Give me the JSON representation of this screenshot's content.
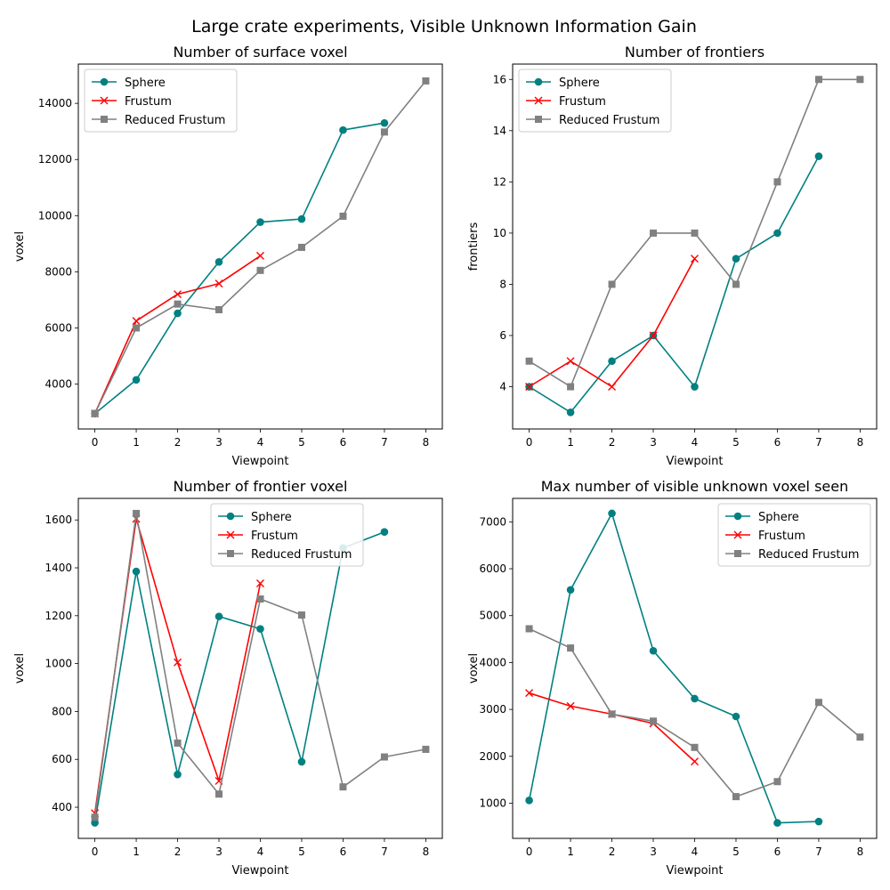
{
  "figure": {
    "suptitle": "Large crate experiments, Visible Unknown Information Gain"
  },
  "series_styles": [
    {
      "name": "Sphere",
      "color": "#008080",
      "marker": "circle"
    },
    {
      "name": "Frustum",
      "color": "#ff0000",
      "marker": "x"
    },
    {
      "name": "Reduced Frustum",
      "color": "#808080",
      "marker": "square"
    }
  ],
  "chart_data": [
    {
      "type": "line",
      "title": "Number of surface voxel",
      "xlabel": "Viewpoint",
      "ylabel": "voxel",
      "xlim": [
        -0.4,
        8.4
      ],
      "ylim": [
        2400,
        15400
      ],
      "xticks": [
        0,
        1,
        2,
        3,
        4,
        5,
        6,
        7,
        8
      ],
      "yticks": [
        4000,
        6000,
        8000,
        10000,
        12000,
        14000
      ],
      "legend": "top-left",
      "grid": false,
      "series": [
        {
          "name": "Sphere",
          "x": [
            0,
            1,
            2,
            3,
            4,
            5,
            6,
            7
          ],
          "values": [
            2950,
            4150,
            6520,
            8350,
            9770,
            9880,
            13050,
            13300
          ]
        },
        {
          "name": "Frustum",
          "x": [
            0,
            1,
            2,
            3,
            4
          ],
          "values": [
            2950,
            6250,
            7200,
            7580,
            8570
          ]
        },
        {
          "name": "Reduced Frustum",
          "x": [
            0,
            1,
            2,
            3,
            4,
            5,
            6,
            7,
            8
          ],
          "values": [
            2950,
            6000,
            6850,
            6650,
            8050,
            8870,
            9980,
            12980,
            14800
          ]
        }
      ]
    },
    {
      "type": "line",
      "title": "Number of frontiers",
      "xlabel": "Viewpoint",
      "ylabel": "frontiers",
      "xlim": [
        -0.4,
        8.4
      ],
      "ylim": [
        2.35,
        16.6
      ],
      "xticks": [
        0,
        1,
        2,
        3,
        4,
        5,
        6,
        7,
        8
      ],
      "yticks": [
        4,
        6,
        8,
        10,
        12,
        14,
        16
      ],
      "legend": "top-left",
      "grid": false,
      "series": [
        {
          "name": "Sphere",
          "x": [
            0,
            1,
            2,
            3,
            4,
            5,
            6,
            7
          ],
          "values": [
            4,
            3,
            5,
            6,
            4,
            9,
            10,
            13
          ]
        },
        {
          "name": "Frustum",
          "x": [
            0,
            1,
            2,
            3,
            4
          ],
          "values": [
            4,
            5,
            4,
            6,
            9
          ]
        },
        {
          "name": "Reduced Frustum",
          "x": [
            0,
            1,
            2,
            3,
            4,
            5,
            6,
            7,
            8
          ],
          "values": [
            5,
            4,
            8,
            10,
            10,
            8,
            12,
            16,
            16
          ]
        }
      ]
    },
    {
      "type": "line",
      "title": "Number of frontier voxel",
      "xlabel": "Viewpoint",
      "ylabel": "voxel",
      "xlim": [
        -0.4,
        8.4
      ],
      "ylim": [
        270,
        1690
      ],
      "xticks": [
        0,
        1,
        2,
        3,
        4,
        5,
        6,
        7,
        8
      ],
      "yticks": [
        400,
        600,
        800,
        1000,
        1200,
        1400,
        1600
      ],
      "legend": "top-center",
      "grid": false,
      "series": [
        {
          "name": "Sphere",
          "x": [
            0,
            1,
            2,
            3,
            4,
            5,
            6,
            7
          ],
          "values": [
            335,
            1385,
            537,
            1197,
            1145,
            590,
            1483,
            1550
          ]
        },
        {
          "name": "Frustum",
          "x": [
            0,
            1,
            2,
            3,
            4
          ],
          "values": [
            375,
            1605,
            1005,
            510,
            1335
          ]
        },
        {
          "name": "Reduced Frustum",
          "x": [
            0,
            1,
            2,
            3,
            4,
            5,
            6,
            7,
            8
          ],
          "values": [
            358,
            1627,
            668,
            455,
            1270,
            1203,
            485,
            610,
            642
          ]
        }
      ]
    },
    {
      "type": "line",
      "title": "Max number of visible unknown voxel seen",
      "xlabel": "Viewpoint",
      "ylabel": "voxel",
      "xlim": [
        -0.4,
        8.4
      ],
      "ylim": [
        250,
        7500
      ],
      "xticks": [
        0,
        1,
        2,
        3,
        4,
        5,
        6,
        7,
        8
      ],
      "yticks": [
        1000,
        2000,
        3000,
        4000,
        5000,
        6000,
        7000
      ],
      "legend": "top-right",
      "grid": false,
      "series": [
        {
          "name": "Sphere",
          "x": [
            0,
            1,
            2,
            3,
            4,
            5,
            6,
            7
          ],
          "values": [
            1060,
            5550,
            7180,
            4250,
            3230,
            2850,
            580,
            610
          ]
        },
        {
          "name": "Frustum",
          "x": [
            0,
            1,
            2,
            3,
            4
          ],
          "values": [
            3350,
            3070,
            2900,
            2700,
            1890
          ]
        },
        {
          "name": "Reduced Frustum",
          "x": [
            0,
            1,
            2,
            3,
            4,
            5,
            6,
            7,
            8
          ],
          "values": [
            4720,
            4310,
            2900,
            2750,
            2190,
            1140,
            1460,
            3150,
            2410
          ]
        }
      ]
    }
  ]
}
